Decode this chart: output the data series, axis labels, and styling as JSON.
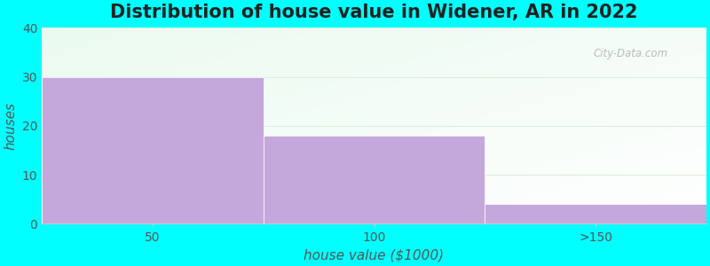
{
  "title": "Distribution of house value in Widener, AR in 2022",
  "categories": [
    "50",
    "100",
    ">150"
  ],
  "values": [
    30,
    18,
    4
  ],
  "bar_color": "#c4a8dc",
  "background_color": "#00ffff",
  "xlabel": "house value ($1000)",
  "ylabel": "houses",
  "ylim": [
    0,
    40
  ],
  "yticks": [
    0,
    10,
    20,
    30,
    40
  ],
  "title_fontsize": 15,
  "axis_label_fontsize": 11,
  "tick_fontsize": 10,
  "bar_width": 1.0,
  "n_bars": 3,
  "watermark": "City-Data.com",
  "grid_color": "#ddeedd",
  "spine_color": "#cccccc"
}
